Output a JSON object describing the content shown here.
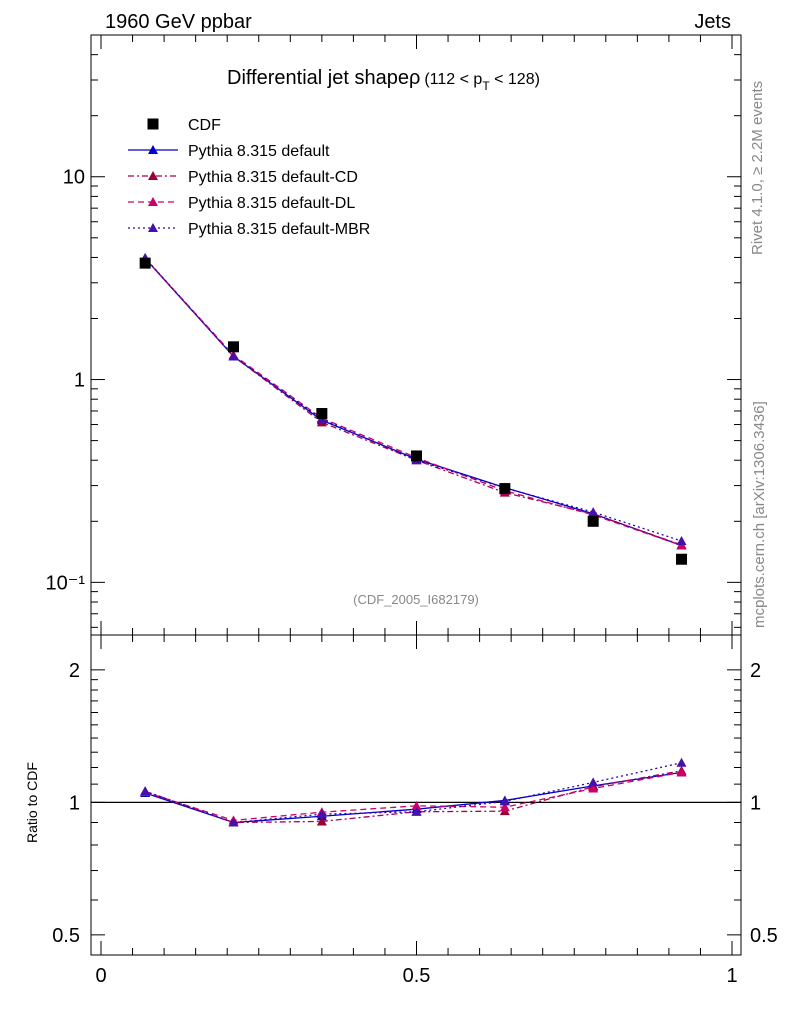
{
  "header": {
    "left": "1960 GeV ppbar",
    "right": "Jets"
  },
  "side_labels": {
    "rivet": "Rivet 4.1.0, ≥ 2.2M events",
    "mcplots": "mcplots.cern.ch [arXiv:1306.3436]"
  },
  "chart_data": {
    "type": "line",
    "title": "Differential jet shapeρ",
    "title_suffix": "(112 < p",
    "title_sub": "T",
    "title_end": " < 128)",
    "watermark": "(CDF_2005_I682179)",
    "xlabel": "",
    "ylabel_ratio": "Ratio to CDF",
    "xlim": [
      0,
      1
    ],
    "ylim": [
      0.055,
      50
    ],
    "ylog": true,
    "ratio_ylim": [
      0.45,
      2.4
    ],
    "x_ticks": [
      "0",
      "0.5",
      "1"
    ],
    "x_tick_values": [
      0,
      0.5,
      1
    ],
    "y_ticks": [
      "10⁻¹",
      "1",
      "10"
    ],
    "y_tick_values": [
      0.1,
      1,
      10
    ],
    "ratio_ticks": [
      "0.5",
      "1",
      "2"
    ],
    "ratio_tick_values": [
      0.5,
      1,
      2
    ],
    "x": [
      0.07,
      0.21,
      0.35,
      0.5,
      0.64,
      0.78,
      0.92
    ],
    "data": {
      "name": "CDF",
      "values": [
        3.75,
        1.45,
        0.68,
        0.42,
        0.29,
        0.2,
        0.13
      ]
    },
    "series": [
      {
        "name": "Pythia 8.315 default",
        "color": "#0000cc",
        "dash": "",
        "marker_color": "#0000cc",
        "values": [
          3.95,
          1.3,
          0.63,
          0.405,
          0.293,
          0.218,
          0.152
        ],
        "ratio": [
          1.05,
          0.9,
          0.93,
          0.965,
          1.01,
          1.09,
          1.17
        ]
      },
      {
        "name": "Pythia 8.315 default-CD",
        "color": "#a8005a",
        "dash": "6,3,2,3",
        "marker_color": "#990033",
        "values": [
          3.97,
          1.3,
          0.615,
          0.4,
          0.277,
          0.217,
          0.153
        ],
        "ratio": [
          1.06,
          0.9,
          0.905,
          0.952,
          0.955,
          1.085,
          1.18
        ]
      },
      {
        "name": "Pythia 8.315 default-DL",
        "color": "#cc0066",
        "dash": "6,4",
        "marker_color": "#cc0066",
        "values": [
          3.95,
          1.32,
          0.645,
          0.412,
          0.283,
          0.215,
          0.152
        ],
        "ratio": [
          1.055,
          0.91,
          0.95,
          0.982,
          0.975,
          1.075,
          1.17
        ]
      },
      {
        "name": "Pythia 8.315 default-MBR",
        "color": "#3300aa",
        "dash": "2,3",
        "marker_color": "#4411aa",
        "values": [
          3.98,
          1.3,
          0.64,
          0.4,
          0.292,
          0.222,
          0.16
        ],
        "ratio": [
          1.06,
          0.9,
          0.94,
          0.952,
          1.005,
          1.11,
          1.23
        ]
      }
    ]
  }
}
